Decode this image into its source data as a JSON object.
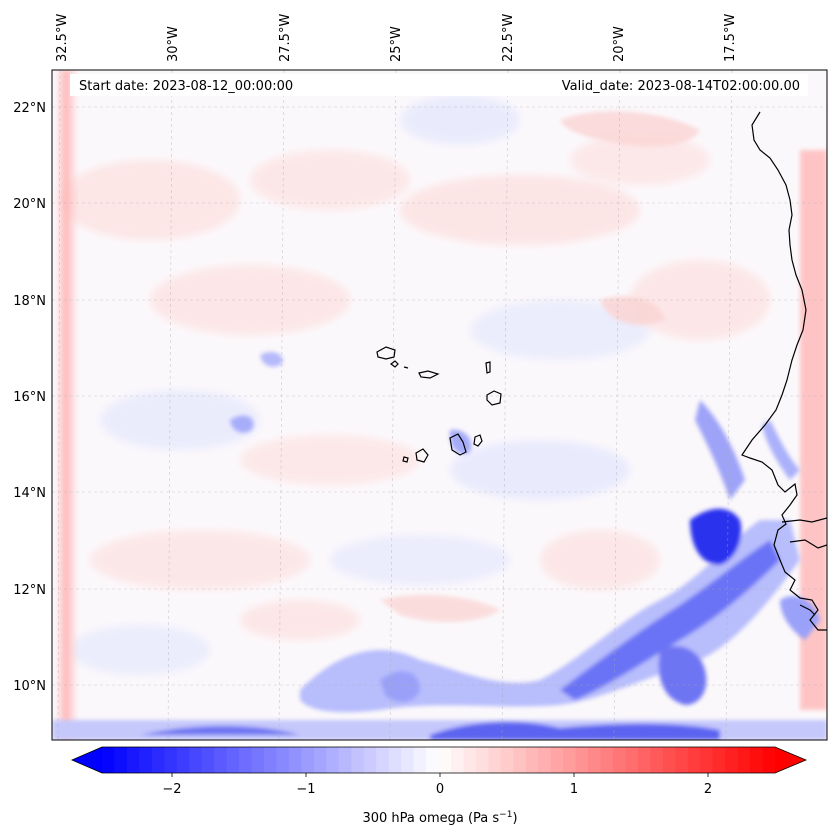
{
  "map": {
    "start_label": "Start date: 2023-08-12_00:00:00",
    "valid_label": "Valid_date: 2023-08-14T02:00:00.00",
    "lon_ticks": [
      "32.5°W",
      "30°W",
      "27.5°W",
      "25°W",
      "22.5°W",
      "20°W",
      "17.5°W"
    ],
    "lat_ticks": [
      "22°N",
      "20°N",
      "18°N",
      "16°N",
      "14°N",
      "12°N",
      "10°N"
    ],
    "extent": {
      "lon_min": -32.6,
      "lon_max": -15.0,
      "lat_min": 8.9,
      "lat_max": 22.8
    }
  },
  "colorbar": {
    "label": "300 hPa omega (Pa s",
    "label_exponent": "−1",
    "label_close": ")",
    "ticks": [
      "−2",
      "−1",
      "0",
      "1",
      "2"
    ],
    "range": [
      -2.7,
      2.7
    ],
    "cmap": "bwr",
    "extend": "both",
    "colors": {
      "negative": "#0000ff",
      "zero": "#ffffff",
      "positive": "#ff0000"
    }
  }
}
